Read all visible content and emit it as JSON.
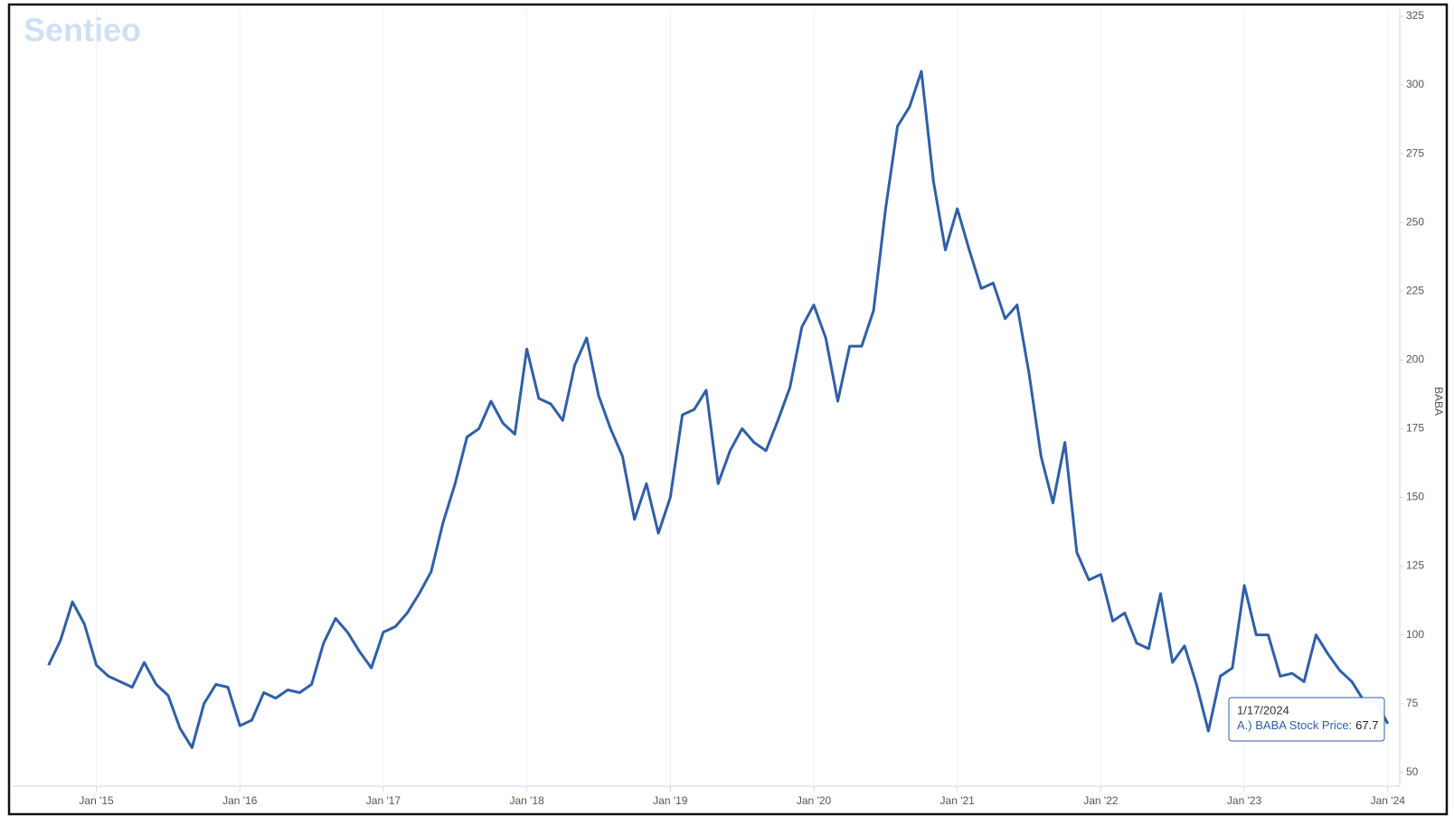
{
  "chart_data": {
    "type": "line",
    "watermark": "Sentieo",
    "y_axis_label": "BABA",
    "xlim": [
      "2014-06",
      "2024-02"
    ],
    "xticks": [
      {
        "value": "2015-01",
        "label": "Jan '15"
      },
      {
        "value": "2016-01",
        "label": "Jan '16"
      },
      {
        "value": "2017-01",
        "label": "Jan '17"
      },
      {
        "value": "2018-01",
        "label": "Jan '18"
      },
      {
        "value": "2019-01",
        "label": "Jan '19"
      },
      {
        "value": "2020-01",
        "label": "Jan '20"
      },
      {
        "value": "2021-01",
        "label": "Jan '21"
      },
      {
        "value": "2022-01",
        "label": "Jan '22"
      },
      {
        "value": "2023-01",
        "label": "Jan '23"
      },
      {
        "value": "2024-01",
        "label": "Jan '24"
      }
    ],
    "ylim": [
      45,
      325
    ],
    "yticks": [
      50,
      75,
      100,
      125,
      150,
      175,
      200,
      225,
      250,
      275,
      300,
      325
    ],
    "grid": true,
    "x": [
      "2014-09",
      "2014-10",
      "2014-11",
      "2014-12",
      "2015-01",
      "2015-02",
      "2015-03",
      "2015-04",
      "2015-05",
      "2015-06",
      "2015-07",
      "2015-08",
      "2015-09",
      "2015-10",
      "2015-11",
      "2015-12",
      "2016-01",
      "2016-02",
      "2016-03",
      "2016-04",
      "2016-05",
      "2016-06",
      "2016-07",
      "2016-08",
      "2016-09",
      "2016-10",
      "2016-11",
      "2016-12",
      "2017-01",
      "2017-02",
      "2017-03",
      "2017-04",
      "2017-05",
      "2017-06",
      "2017-07",
      "2017-08",
      "2017-09",
      "2017-10",
      "2017-11",
      "2017-12",
      "2018-01",
      "2018-02",
      "2018-03",
      "2018-04",
      "2018-05",
      "2018-06",
      "2018-07",
      "2018-08",
      "2018-09",
      "2018-10",
      "2018-11",
      "2018-12",
      "2019-01",
      "2019-02",
      "2019-03",
      "2019-04",
      "2019-05",
      "2019-06",
      "2019-07",
      "2019-08",
      "2019-09",
      "2019-10",
      "2019-11",
      "2019-12",
      "2020-01",
      "2020-02",
      "2020-03",
      "2020-04",
      "2020-05",
      "2020-06",
      "2020-07",
      "2020-08",
      "2020-09",
      "2020-10",
      "2020-11",
      "2020-12",
      "2021-01",
      "2021-02",
      "2021-03",
      "2021-04",
      "2021-05",
      "2021-06",
      "2021-07",
      "2021-08",
      "2021-09",
      "2021-10",
      "2021-11",
      "2021-12",
      "2022-01",
      "2022-02",
      "2022-03",
      "2022-04",
      "2022-05",
      "2022-06",
      "2022-07",
      "2022-08",
      "2022-09",
      "2022-10",
      "2022-11",
      "2022-12",
      "2023-01",
      "2023-02",
      "2023-03",
      "2023-04",
      "2023-05",
      "2023-06",
      "2023-07",
      "2023-08",
      "2023-09",
      "2023-10",
      "2023-11",
      "2023-12",
      "2024-01"
    ],
    "series": [
      {
        "name": "A.) BABA Stock Price",
        "color": "#2f5fa7",
        "values": [
          89,
          98,
          112,
          104,
          89,
          85,
          83,
          81,
          90,
          82,
          78,
          66,
          59,
          75,
          82,
          81,
          67,
          69,
          79,
          77,
          80,
          79,
          82,
          97,
          106,
          101,
          94,
          88,
          101,
          103,
          108,
          115,
          123,
          141,
          155,
          172,
          175,
          185,
          177,
          173,
          204,
          186,
          184,
          178,
          198,
          208,
          187,
          175,
          165,
          142,
          155,
          137,
          150,
          180,
          182,
          189,
          155,
          167,
          175,
          170,
          167,
          178,
          190,
          212,
          220,
          208,
          185,
          205,
          205,
          218,
          255,
          285,
          292,
          305,
          265,
          240,
          255,
          240,
          226,
          228,
          215,
          220,
          195,
          165,
          148,
          170,
          130,
          120,
          122,
          105,
          108,
          97,
          95,
          115,
          90,
          96,
          82,
          65,
          85,
          88,
          118,
          100,
          100,
          85,
          86,
          83,
          100,
          93,
          87,
          83,
          76,
          76,
          67.7
        ]
      }
    ],
    "tooltip": {
      "date": "1/17/2024",
      "label": "A.) BABA Stock Price:",
      "value": 67.7
    }
  }
}
